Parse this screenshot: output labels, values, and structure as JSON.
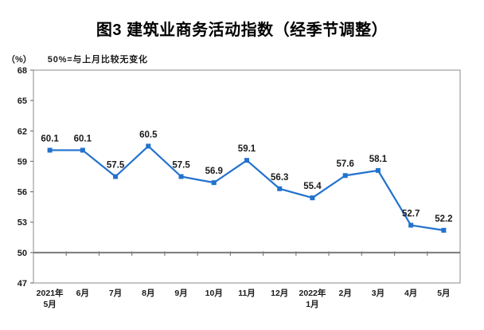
{
  "chart_data": {
    "type": "line",
    "title": "图3 建筑业商务活动指数（经季节调整）",
    "unit_label": "（%）",
    "note": "50%=与上月比较无变化",
    "categories": [
      "2021年\n5月",
      "6月",
      "7月",
      "8月",
      "9月",
      "10月",
      "11月",
      "12月",
      "2022年\n1月",
      "2月",
      "3月",
      "4月",
      "5月"
    ],
    "series": [
      {
        "name": "建筑业商务活动指数",
        "values": [
          60.1,
          60.1,
          57.5,
          60.5,
          57.5,
          56.9,
          59.1,
          56.3,
          55.4,
          57.6,
          58.1,
          52.7,
          52.2
        ]
      }
    ],
    "ylim": [
      47,
      68
    ],
    "ytick_step": 3,
    "yticks": [
      47,
      50,
      53,
      56,
      59,
      62,
      65,
      68
    ],
    "reference_line": 50,
    "show_data_labels": true,
    "grid": false,
    "legend": "none",
    "colors": {
      "line": "#2272CE",
      "frame": "#A6A6A6",
      "axis": "#7A7A7A",
      "text": "#1A1A1A"
    }
  }
}
